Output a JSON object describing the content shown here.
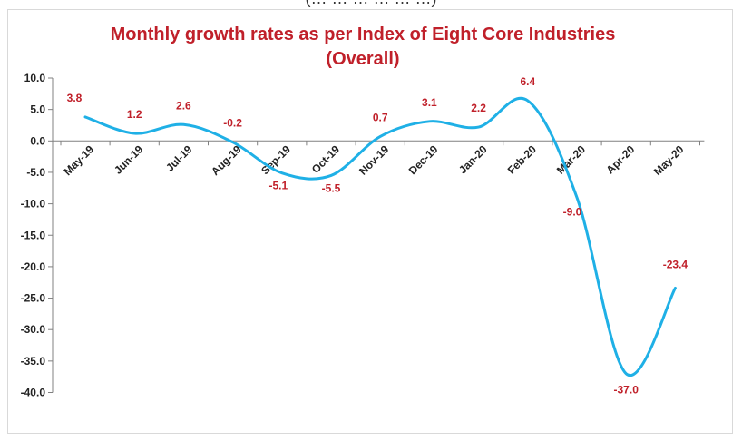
{
  "top_clipped_text": "(… … … … … …)",
  "chart_data": {
    "type": "line",
    "title": "Monthly growth rates as per Index of Eight Core Industries",
    "subtitle": "(Overall)",
    "xlabel": "",
    "ylabel": "",
    "categories": [
      "May-19",
      "Jun-19",
      "Jul-19",
      "Aug-19",
      "Sep-19",
      "Oct-19",
      "Nov-19",
      "Dec-19",
      "Jan-20",
      "Feb-20",
      "Mar-20",
      "Apr-20",
      "May-20"
    ],
    "values": [
      3.8,
      1.2,
      2.6,
      -0.2,
      -5.1,
      -5.5,
      0.7,
      3.1,
      2.2,
      6.4,
      -9.0,
      -37.0,
      -23.4
    ],
    "data_labels": [
      "3.8",
      "1.2",
      "2.6",
      "-0.2",
      "-5.1",
      "-5.5",
      "0.7",
      "3.1",
      "2.2",
      "6.4",
      "-9.0",
      "-37.0",
      "-23.4"
    ],
    "yticks": [
      "10.0",
      "5.0",
      "0.0",
      "-5.0",
      "-10.0",
      "-15.0",
      "-20.0",
      "-25.0",
      "-30.0",
      "-35.0",
      "-40.0"
    ],
    "ylim": [
      -40,
      10
    ],
    "grid": false,
    "legend": "none",
    "line_color": "#1fb0e6",
    "label_color": "#c0202a"
  }
}
